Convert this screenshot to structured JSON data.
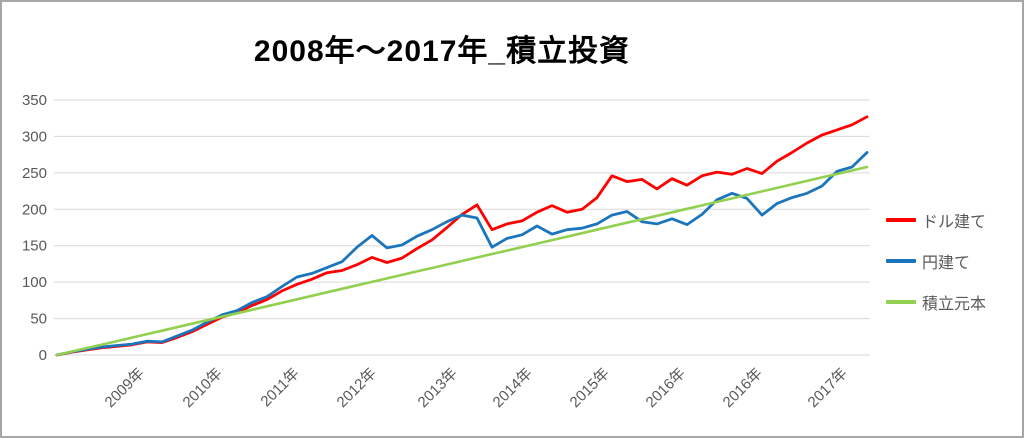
{
  "frame": {
    "border_color": "#a6a6a6",
    "background_color": "#ffffff"
  },
  "chart_data": {
    "type": "line",
    "title": "2008年〜2017年_積立投資",
    "xlabel": "",
    "ylabel": "",
    "ylim": [
      0,
      350
    ],
    "y_ticks": [
      0,
      50,
      100,
      150,
      200,
      250,
      300,
      350
    ],
    "x_tick_labels": [
      "2009年",
      "2010年",
      "2011年",
      "2012年",
      "2013年",
      "2014年",
      "2015年",
      "2016年",
      "2016年",
      "2017年"
    ],
    "grid": "horizontal",
    "gridline_color": "#d9d9d9",
    "axis_label_color": "#595959",
    "legend_position": "right",
    "x_range_description": "2008 start to early 2017, values sampled uniformly",
    "series": [
      {
        "name": "ドル建て",
        "color": "#ff0000",
        "width": 2.8,
        "values": [
          0,
          4,
          7,
          10,
          12,
          14,
          18,
          17,
          24,
          32,
          42,
          52,
          58,
          68,
          76,
          88,
          97,
          104,
          113,
          116,
          124,
          134,
          127,
          133,
          146,
          158,
          175,
          193,
          206,
          172,
          180,
          184,
          196,
          205,
          196,
          200,
          216,
          246,
          238,
          241,
          228,
          242,
          233,
          246,
          251,
          248,
          256,
          249,
          266,
          278,
          291,
          302,
          309,
          316,
          327
        ]
      },
      {
        "name": "円建て",
        "color": "#1b75bc",
        "width": 2.8,
        "values": [
          0,
          4.5,
          8,
          11,
          13,
          15,
          19,
          18,
          26,
          34,
          45,
          55,
          61,
          72,
          80,
          94,
          107,
          112,
          120,
          128,
          148,
          164,
          147,
          151,
          163,
          172,
          183,
          192,
          188,
          148,
          160,
          165,
          177,
          166,
          172,
          174,
          180,
          192,
          197,
          183,
          180,
          187,
          179,
          193,
          213,
          222,
          215,
          192,
          208,
          216,
          222,
          232,
          252,
          258,
          278
        ]
      },
      {
        "name": "積立元本",
        "color": "#92d050",
        "width": 2.6,
        "values": [
          0,
          4.8,
          9.6,
          14.3,
          19.1,
          23.9,
          28.7,
          33.4,
          38.2,
          43,
          47.8,
          52.6,
          57.3,
          62.1,
          66.9,
          71.7,
          76.4,
          81.2,
          86,
          90.8,
          95.6,
          100.3,
          105.1,
          109.9,
          114.7,
          119.4,
          124.2,
          129,
          133.8,
          138.6,
          143.3,
          148.1,
          152.9,
          157.7,
          162.4,
          167.2,
          172,
          176.8,
          181.6,
          186.3,
          191.1,
          195.9,
          200.7,
          205.4,
          210.2,
          215,
          219.8,
          224.6,
          229.3,
          234.1,
          238.9,
          243.7,
          248.4,
          253.2,
          258
        ]
      }
    ]
  }
}
